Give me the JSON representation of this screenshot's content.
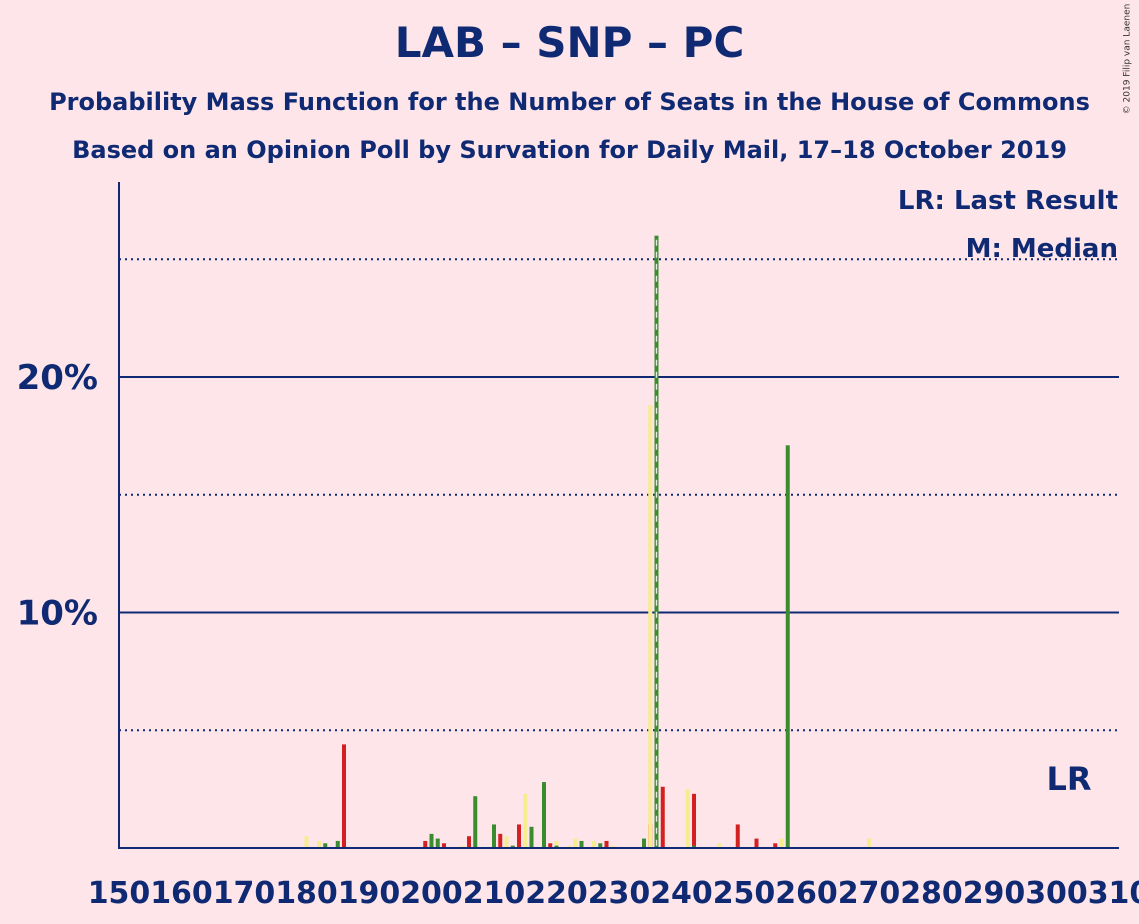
{
  "title": "LAB – SNP – PC",
  "subtitle": "Probability Mass Function for the Number of Seats in the House of Commons",
  "caption": "Based on an Opinion Poll by Survation for Daily Mail, 17–18 October 2019",
  "copyright": "© 2019 Filip van Laenen",
  "legend": {
    "last_result": "LR: Last Result",
    "median": "M: Median",
    "lr_label": "LR"
  },
  "colors": {
    "background": "#fde5ea",
    "axis": "#0f2a73",
    "green": "#3b8c2e",
    "red": "#d32020",
    "yellow": "#f7ec8f"
  },
  "chart_data": {
    "type": "bar",
    "xlabel": "",
    "ylabel": "",
    "xlim": [
      150,
      310
    ],
    "ylim": [
      0,
      28
    ],
    "yticks": [
      {
        "value": 10,
        "label": "10%"
      },
      {
        "value": 20,
        "label": "20%"
      }
    ],
    "xticks": [
      "150",
      "160",
      "170",
      "180",
      "190",
      "200",
      "210",
      "220",
      "230",
      "240",
      "250",
      "260",
      "270",
      "280",
      "290",
      "300",
      "310"
    ],
    "dotted_gridlines": [
      5,
      15,
      25
    ],
    "median_seat": 236,
    "last_result_seat": 302,
    "series": [
      {
        "color": "red",
        "points": [
          [
            186,
            4.4
          ],
          [
            199,
            0.3
          ],
          [
            202,
            0.2
          ],
          [
            206,
            0.5
          ],
          [
            211,
            0.6
          ],
          [
            214,
            1.0
          ],
          [
            216,
            0.4
          ],
          [
            219,
            0.2
          ],
          [
            228,
            0.3
          ],
          [
            235,
            1.0
          ],
          [
            237,
            2.6
          ],
          [
            242,
            2.3
          ],
          [
            249,
            1.0
          ],
          [
            252,
            0.4
          ],
          [
            255,
            0.2
          ]
        ]
      },
      {
        "color": "yellow",
        "points": [
          [
            180,
            0.5
          ],
          [
            182,
            0.3
          ],
          [
            185,
            0.3
          ],
          [
            200,
            0.4
          ],
          [
            205,
            0.1
          ],
          [
            207,
            0.1
          ],
          [
            212,
            0.5
          ],
          [
            215,
            2.3
          ],
          [
            220,
            0.3
          ],
          [
            222,
            0.1
          ],
          [
            223,
            0.4
          ],
          [
            226,
            0.3
          ],
          [
            229,
            0.1
          ],
          [
            235,
            18.8
          ],
          [
            241,
            2.5
          ],
          [
            246,
            0.2
          ],
          [
            256,
            0.4
          ],
          [
            270,
            0.4
          ]
        ]
      },
      {
        "color": "green",
        "points": [
          [
            183,
            0.2
          ],
          [
            185,
            0.3
          ],
          [
            200,
            0.6
          ],
          [
            201,
            0.4
          ],
          [
            207,
            2.2
          ],
          [
            210,
            1.0
          ],
          [
            213,
            0.1
          ],
          [
            216,
            0.9
          ],
          [
            218,
            2.8
          ],
          [
            220,
            0.1
          ],
          [
            224,
            0.3
          ],
          [
            227,
            0.2
          ],
          [
            234,
            0.4
          ],
          [
            236,
            26.0
          ],
          [
            242,
            0.1
          ],
          [
            257,
            17.1
          ]
        ]
      }
    ]
  }
}
